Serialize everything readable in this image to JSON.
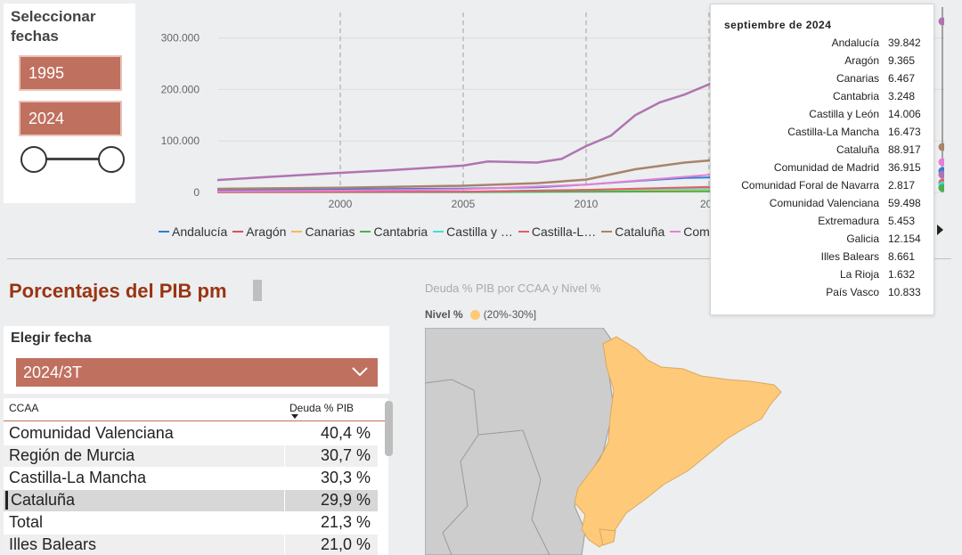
{
  "date_selector": {
    "title": "Seleccionar fechas",
    "start": "1995",
    "end": "2024"
  },
  "line_chart": {
    "chart_data": {
      "type": "line",
      "y_ticks": [
        "300.000",
        "200.000",
        "100.000",
        "0"
      ],
      "x_ticks": [
        "2000",
        "2005",
        "2010",
        "201"
      ],
      "ylim": [
        0,
        330000
      ],
      "series": [
        {
          "name": "Andalucía",
          "color": "#2f7ed8",
          "x": [
            1995,
            2000,
            2005,
            2008,
            2010,
            2012,
            2014,
            2016
          ],
          "values": [
            4000,
            6000,
            7500,
            10000,
            15000,
            22000,
            28000,
            30000
          ]
        },
        {
          "name": "Aragón",
          "color": "#d94f5c",
          "x": [
            1995,
            2000,
            2005,
            2010,
            2016
          ],
          "values": [
            800,
            1200,
            1500,
            3000,
            7000
          ]
        },
        {
          "name": "Canarias",
          "color": "#f4b860",
          "x": [
            1995,
            2000,
            2005,
            2010,
            2016
          ],
          "values": [
            600,
            900,
            1200,
            3000,
            6000
          ]
        },
        {
          "name": "Cantabria",
          "color": "#4caf50",
          "x": [
            1995,
            2005,
            2016
          ],
          "values": [
            300,
            500,
            2500
          ]
        },
        {
          "name": "Castilla y …",
          "color": "#3ee0d5",
          "x": [
            1995,
            2005,
            2016
          ],
          "values": [
            800,
            1400,
            9000
          ]
        },
        {
          "name": "Castilla-L…",
          "color": "#e35d6a",
          "x": [
            1995,
            2005,
            2010,
            2016
          ],
          "values": [
            700,
            1400,
            5000,
            12000
          ]
        },
        {
          "name": "Cataluña",
          "color": "#a9836b",
          "x": [
            1995,
            2000,
            2005,
            2008,
            2010,
            2012,
            2014,
            2016
          ],
          "values": [
            7000,
            9000,
            13000,
            18000,
            25000,
            45000,
            58000,
            66000
          ]
        },
        {
          "name": "Comunidad Valenciana",
          "color": "#e77fd6",
          "x": [
            1995,
            2000,
            2005,
            2010,
            2016
          ],
          "values": [
            2000,
            3500,
            6000,
            15000,
            38000
          ]
        },
        {
          "name": "Comunidad de Madrid",
          "color": "#b074b0",
          "x": [
            1995,
            1997,
            2000,
            2002,
            2005,
            2006,
            2008,
            2009,
            2010,
            2011,
            2012,
            2013,
            2014,
            2015,
            2016
          ],
          "values": [
            24000,
            30000,
            38000,
            43000,
            52000,
            60000,
            58000,
            65000,
            90000,
            110000,
            150000,
            175000,
            190000,
            210000,
            238000
          ]
        }
      ]
    },
    "legend": [
      "Andalucía",
      "Aragón",
      "Canarias",
      "Cantabria",
      "Castilla y …",
      "Castilla-L…",
      "Cataluña",
      "Com"
    ]
  },
  "tooltip": {
    "title": "septiembre de 2024",
    "rows": [
      {
        "name": "Andalucía",
        "value": "39.842"
      },
      {
        "name": "Aragón",
        "value": "9.365"
      },
      {
        "name": "Canarias",
        "value": "6.467"
      },
      {
        "name": "Cantabria",
        "value": "3.248"
      },
      {
        "name": "Castilla y León",
        "value": "14.006"
      },
      {
        "name": "Castilla-La Mancha",
        "value": "16.473"
      },
      {
        "name": "Cataluña",
        "value": "88.917"
      },
      {
        "name": "Comunidad de Madrid",
        "value": "36.915"
      },
      {
        "name": "Comunidad Foral de Navarra",
        "value": "2.817"
      },
      {
        "name": "Comunidad Valenciana",
        "value": "59.498"
      },
      {
        "name": "Extremadura",
        "value": "5.453"
      },
      {
        "name": "Galicia",
        "value": "12.154"
      },
      {
        "name": "Illes Balears",
        "value": "8.661"
      },
      {
        "name": "La Rioja",
        "value": "1.632"
      },
      {
        "name": "País Vasco",
        "value": "10.833"
      }
    ]
  },
  "pib": {
    "title": "Porcentajes del PIB pm",
    "select_label": "Elegir fecha",
    "selected_date": "2024/3T"
  },
  "table": {
    "headers": [
      "CCAA",
      "Deuda % PIB"
    ],
    "rows": [
      {
        "name": "Comunidad Valenciana",
        "value": "40,4 %"
      },
      {
        "name": "Región de Murcia",
        "value": "30,7 %"
      },
      {
        "name": "Castilla-La Mancha",
        "value": "30,3 %"
      },
      {
        "name": "Cataluña",
        "value": "29,9 %"
      },
      {
        "name": "Total",
        "value": "21,3 %"
      },
      {
        "name": "Illes Balears",
        "value": "21,0 %"
      }
    ]
  },
  "map": {
    "title": "Deuda % PIB por CCAA y Nivel %",
    "legend_title": "Nivel %",
    "legend_item": "(20%-30%]",
    "highlight_color": "#ffc97a"
  }
}
